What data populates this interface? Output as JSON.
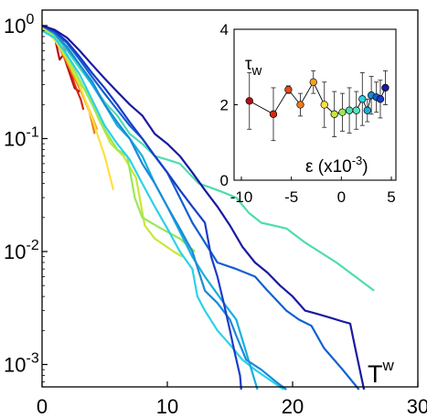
{
  "chart_data": [
    {
      "type": "line",
      "title": "",
      "xlabel": "T",
      "xlabel_superscript": "w",
      "ylabel": "",
      "xscale": "linear",
      "yscale": "log",
      "xlim": [
        0,
        30
      ],
      "ylim": [
        0.0005,
        1
      ],
      "grid": false,
      "legend": "none",
      "x_ticks": [
        {
          "value": 0,
          "label": "0"
        },
        {
          "value": 10,
          "label": "10"
        },
        {
          "value": 20,
          "label": "20"
        },
        {
          "value": 30,
          "label": "30"
        }
      ],
      "y_ticks": [
        {
          "value": 1,
          "base": "10",
          "exp": "0"
        },
        {
          "value": 0.1,
          "base": "10",
          "exp": "-1"
        },
        {
          "value": 0.01,
          "base": "10",
          "exp": "-2"
        },
        {
          "value": 0.001,
          "base": "10",
          "exp": "-3"
        }
      ],
      "series": [
        {
          "color": "#b01010",
          "points": [
            [
              0,
              1
            ],
            [
              0.5,
              0.95
            ],
            [
              1,
              0.8
            ],
            [
              1.4,
              0.5
            ],
            [
              1.7,
              0.55
            ],
            [
              2.2,
              0.38
            ],
            [
              2.6,
              0.28
            ],
            [
              3,
              0.26
            ]
          ]
        },
        {
          "color": "#d22a10",
          "points": [
            [
              0,
              1
            ],
            [
              0.6,
              0.9
            ],
            [
              1.2,
              0.7
            ],
            [
              1.6,
              0.75
            ],
            [
              2.1,
              0.45
            ],
            [
              2.6,
              0.3
            ],
            [
              3.1,
              0.22
            ],
            [
              3.3,
              0.18
            ]
          ]
        },
        {
          "color": "#f07a18",
          "points": [
            [
              0,
              1
            ],
            [
              0.7,
              0.9
            ],
            [
              1.5,
              0.6
            ],
            [
              2.3,
              0.4
            ],
            [
              3.2,
              0.25
            ],
            [
              3.8,
              0.17
            ],
            [
              4.2,
              0.11
            ]
          ]
        },
        {
          "color": "#f5a020",
          "points": [
            [
              0,
              1
            ],
            [
              0.8,
              0.85
            ],
            [
              1.8,
              0.55
            ],
            [
              2.8,
              0.32
            ],
            [
              3.6,
              0.2
            ],
            [
              4.4,
              0.12
            ]
          ]
        },
        {
          "color": "#ffe040",
          "points": [
            [
              0,
              0.95
            ],
            [
              1,
              0.75
            ],
            [
              2,
              0.5
            ],
            [
              3,
              0.3
            ],
            [
              4,
              0.15
            ],
            [
              5,
              0.07
            ],
            [
              5.7,
              0.035
            ]
          ]
        },
        {
          "color": "#c8e838",
          "points": [
            [
              0,
              0.95
            ],
            [
              1,
              0.8
            ],
            [
              2,
              0.5
            ],
            [
              3,
              0.3
            ],
            [
              3.5,
              0.27
            ],
            [
              4.5,
              0.15
            ],
            [
              5.5,
              0.09
            ],
            [
              6.5,
              0.07
            ],
            [
              7.5,
              0.045
            ],
            [
              8.2,
              0.017
            ],
            [
              9,
              0.013
            ],
            [
              10.5,
              0.01
            ],
            [
              11.2,
              0.009
            ]
          ]
        },
        {
          "color": "#98e858",
          "points": [
            [
              0,
              1
            ],
            [
              1,
              0.8
            ],
            [
              2,
              0.55
            ],
            [
              3,
              0.33
            ],
            [
              4,
              0.2
            ],
            [
              5,
              0.12
            ],
            [
              6,
              0.08
            ],
            [
              6.8,
              0.07
            ],
            [
              7.4,
              0.03
            ],
            [
              8,
              0.02
            ],
            [
              9.5,
              0.016
            ],
            [
              11,
              0.013
            ],
            [
              12.2,
              0.01
            ]
          ]
        },
        {
          "color": "#4edcb0",
          "points": [
            [
              0,
              1
            ],
            [
              1,
              0.85
            ],
            [
              2,
              0.6
            ],
            [
              3,
              0.42
            ],
            [
              4,
              0.3
            ],
            [
              5,
              0.21
            ],
            [
              6,
              0.16
            ],
            [
              7,
              0.11
            ],
            [
              8,
              0.09
            ],
            [
              9,
              0.07
            ],
            [
              10,
              0.065
            ],
            [
              11,
              0.06
            ],
            [
              12.5,
              0.04
            ],
            [
              14,
              0.035
            ],
            [
              15.5,
              0.03
            ],
            [
              16.5,
              0.022
            ],
            [
              17.5,
              0.018
            ],
            [
              19.5,
              0.016
            ],
            [
              21,
              0.012
            ],
            [
              23.5,
              0.008
            ],
            [
              25,
              0.006
            ],
            [
              26.5,
              0.0045
            ]
          ]
        },
        {
          "color": "#2ad2e8",
          "points": [
            [
              0,
              0.9
            ],
            [
              1,
              0.78
            ],
            [
              2,
              0.55
            ],
            [
              3,
              0.37
            ],
            [
              4,
              0.22
            ],
            [
              5,
              0.13
            ],
            [
              6,
              0.09
            ],
            [
              7,
              0.065
            ],
            [
              8,
              0.04
            ],
            [
              9,
              0.025
            ],
            [
              10,
              0.016
            ],
            [
              11,
              0.01
            ],
            [
              12,
              0.007
            ],
            [
              12.4,
              0.004
            ],
            [
              13,
              0.003
            ],
            [
              14,
              0.002
            ],
            [
              15,
              0.0015
            ],
            [
              16,
              0.0011
            ],
            [
              17,
              0.0009
            ],
            [
              19.3,
              0.0006
            ]
          ]
        },
        {
          "color": "#19aede",
          "points": [
            [
              0,
              1
            ],
            [
              1,
              0.85
            ],
            [
              2,
              0.62
            ],
            [
              3,
              0.45
            ],
            [
              4,
              0.3
            ],
            [
              5,
              0.2
            ],
            [
              6,
              0.13
            ],
            [
              7,
              0.1
            ],
            [
              8,
              0.07
            ],
            [
              9,
              0.04
            ],
            [
              10,
              0.025
            ],
            [
              11,
              0.015
            ],
            [
              12,
              0.009
            ],
            [
              13,
              0.006
            ],
            [
              13.8,
              0.0045
            ],
            [
              14.5,
              0.0035
            ],
            [
              15.5,
              0.0025
            ],
            [
              17.2,
              0.0006
            ]
          ]
        },
        {
          "color": "#1a8ad8",
          "points": [
            [
              0,
              1
            ],
            [
              1,
              0.85
            ],
            [
              2,
              0.65
            ],
            [
              3,
              0.45
            ],
            [
              4,
              0.32
            ],
            [
              5,
              0.2
            ],
            [
              6,
              0.14
            ],
            [
              7,
              0.1
            ],
            [
              8,
              0.06
            ],
            [
              9,
              0.04
            ],
            [
              10,
              0.025
            ],
            [
              11,
              0.016
            ],
            [
              12,
              0.01
            ],
            [
              13,
              0.0045
            ],
            [
              14,
              0.0035
            ],
            [
              15,
              0.0025
            ],
            [
              15.5,
              0.0018
            ],
            [
              16.3,
              0.0011
            ],
            [
              17.5,
              0.0009
            ],
            [
              18.7,
              0.0007
            ],
            [
              19.5,
              0.0006
            ]
          ]
        },
        {
          "color": "#1060d0",
          "points": [
            [
              0,
              1
            ],
            [
              1,
              0.88
            ],
            [
              2,
              0.7
            ],
            [
              3,
              0.5
            ],
            [
              4,
              0.35
            ],
            [
              5,
              0.25
            ],
            [
              6,
              0.18
            ],
            [
              7,
              0.13
            ],
            [
              8,
              0.1
            ],
            [
              9,
              0.07
            ],
            [
              10,
              0.05
            ],
            [
              11,
              0.03
            ],
            [
              12,
              0.018
            ],
            [
              13,
              0.012
            ],
            [
              14,
              0.008
            ],
            [
              15.5,
              0.007
            ],
            [
              17,
              0.006
            ],
            [
              18,
              0.0045
            ],
            [
              19.5,
              0.003
            ],
            [
              20.5,
              0.0025
            ],
            [
              21.5,
              0.0022
            ],
            [
              22.5,
              0.0014
            ],
            [
              24,
              0.0009
            ],
            [
              25.3,
              0.0006
            ]
          ]
        },
        {
          "color": "#1a3cc8",
          "points": [
            [
              0,
              1
            ],
            [
              1,
              0.9
            ],
            [
              2,
              0.72
            ],
            [
              3,
              0.53
            ],
            [
              4,
              0.38
            ],
            [
              5,
              0.28
            ],
            [
              6,
              0.2
            ],
            [
              7,
              0.14
            ],
            [
              8,
              0.1
            ],
            [
              9,
              0.07
            ],
            [
              10,
              0.05
            ],
            [
              11,
              0.035
            ],
            [
              12,
              0.025
            ],
            [
              13,
              0.018
            ],
            [
              13.5,
              0.009
            ],
            [
              14,
              0.006
            ],
            [
              14.5,
              0.0035
            ],
            [
              15,
              0.002
            ],
            [
              15.3,
              0.0014
            ],
            [
              15.6,
              0.001
            ],
            [
              15.8,
              0.0008
            ],
            [
              15.9,
              0.0006
            ]
          ]
        },
        {
          "color": "#1a1aa0",
          "points": [
            [
              0,
              1
            ],
            [
              1,
              0.92
            ],
            [
              2,
              0.78
            ],
            [
              3,
              0.6
            ],
            [
              4,
              0.45
            ],
            [
              5,
              0.34
            ],
            [
              6,
              0.26
            ],
            [
              7,
              0.2
            ],
            [
              8,
              0.16
            ],
            [
              9,
              0.11
            ],
            [
              10,
              0.09
            ],
            [
              11,
              0.07
            ],
            [
              12,
              0.05
            ],
            [
              13,
              0.035
            ],
            [
              14,
              0.025
            ],
            [
              15,
              0.017
            ],
            [
              16,
              0.011
            ],
            [
              17,
              0.008
            ],
            [
              18,
              0.0065
            ],
            [
              19,
              0.005
            ],
            [
              20,
              0.004
            ],
            [
              21,
              0.003
            ],
            [
              22,
              0.0028
            ],
            [
              23,
              0.0026
            ],
            [
              24,
              0.0024
            ],
            [
              24.6,
              0.0023
            ],
            [
              25,
              0.0014
            ],
            [
              25.7,
              0.0006
            ]
          ]
        }
      ]
    },
    {
      "type": "scatter",
      "role": "inset",
      "title": "",
      "ylabel": "τ",
      "ylabel_subscript": "w",
      "xlabel": "ε (x10",
      "xlabel_superscript": "-3",
      "xlabel_suffix": ")",
      "xlim": [
        -10,
        5
      ],
      "ylim": [
        0,
        4
      ],
      "x_ticks": [
        {
          "value": -10,
          "label": "-10"
        },
        {
          "value": -5,
          "label": "-5"
        },
        {
          "value": 0,
          "label": "0"
        },
        {
          "value": 5,
          "label": "5"
        }
      ],
      "y_ticks": [
        {
          "value": 0,
          "label": "0"
        },
        {
          "value": 2,
          "label": "2"
        },
        {
          "value": 4,
          "label": "4"
        }
      ],
      "connected": true,
      "points": [
        {
          "x": -9.2,
          "y": 2.1,
          "err": 0.75,
          "color": "#b01010"
        },
        {
          "x": -6.8,
          "y": 1.75,
          "err": 0.7,
          "color": "#d22a10"
        },
        {
          "x": -5.3,
          "y": 2.4,
          "err": 0.1,
          "color": "#e84a10"
        },
        {
          "x": -4.1,
          "y": 2.0,
          "err": 0.3,
          "color": "#f07a18"
        },
        {
          "x": -2.8,
          "y": 2.6,
          "err": 0.3,
          "color": "#f5a020"
        },
        {
          "x": -1.7,
          "y": 2.0,
          "err": 0.6,
          "color": "#ffe040"
        },
        {
          "x": -0.7,
          "y": 1.75,
          "err": 0.6,
          "color": "#c8e838"
        },
        {
          "x": 0.1,
          "y": 1.8,
          "err": 0.5,
          "color": "#98e858"
        },
        {
          "x": 0.8,
          "y": 1.85,
          "err": 0.6,
          "color": "#4edcb0"
        },
        {
          "x": 1.5,
          "y": 1.85,
          "err": 0.5,
          "color": "#60e0c0"
        },
        {
          "x": 2.1,
          "y": 2.15,
          "err": 0.7,
          "color": "#2ad2e8"
        },
        {
          "x": 2.6,
          "y": 1.85,
          "err": 0.3,
          "color": "#19aede"
        },
        {
          "x": 3.0,
          "y": 2.25,
          "err": 0.5,
          "color": "#1a8ad8"
        },
        {
          "x": 3.5,
          "y": 2.2,
          "err": 0.4,
          "color": "#1060d0"
        },
        {
          "x": 3.9,
          "y": 2.15,
          "err": 0.5,
          "color": "#1a3cc8"
        },
        {
          "x": 4.4,
          "y": 2.45,
          "err": 0.45,
          "color": "#1a1aa0"
        }
      ]
    }
  ]
}
